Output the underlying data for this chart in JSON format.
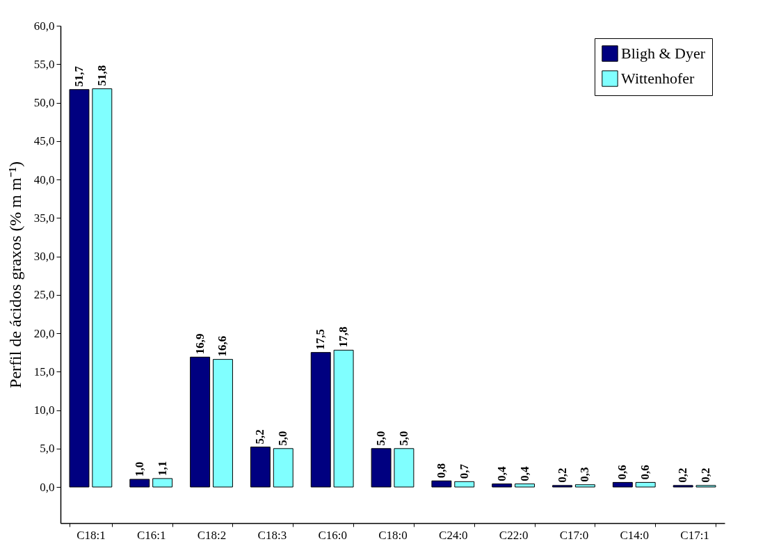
{
  "chart_data": {
    "type": "bar",
    "ylabel": "Perfil de ácidos graxos (% m m⁻¹)",
    "categories": [
      "C18:1",
      "C16:1",
      "C18:2",
      "C18:3",
      "C16:0",
      "C18:0",
      "C24:0",
      "C22:0",
      "C17:0",
      "C14:0",
      "C17:1"
    ],
    "series": [
      {
        "name": "Bligh & Dyer",
        "color": "#000080",
        "values": [
          51.7,
          1.0,
          16.9,
          5.2,
          17.5,
          5.0,
          0.8,
          0.4,
          0.2,
          0.6,
          0.2
        ],
        "value_labels": [
          "51,7",
          "1,0",
          "16,9",
          "5,2",
          "17,5",
          "5,0",
          "0,8",
          "0,4",
          "0,2",
          "0,6",
          "0,2"
        ]
      },
      {
        "name": "Wittenhofer",
        "color": "#80ffff",
        "values": [
          51.8,
          1.1,
          16.6,
          5.0,
          17.8,
          5.0,
          0.7,
          0.4,
          0.3,
          0.6,
          0.2
        ],
        "value_labels": [
          "51,8",
          "1,1",
          "16,6",
          "5,0",
          "17,8",
          "5,0",
          "0,7",
          "0,4",
          "0,3",
          "0,6",
          "0,2"
        ]
      }
    ],
    "ylim": [
      -4.7,
      60
    ],
    "yticks": [
      {
        "value": 0,
        "label": "0,0"
      },
      {
        "value": 5,
        "label": "5,0"
      },
      {
        "value": 10,
        "label": "10,0"
      },
      {
        "value": 15,
        "label": "15,0"
      },
      {
        "value": 20,
        "label": "20,0"
      },
      {
        "value": 25,
        "label": "25,0"
      },
      {
        "value": 30,
        "label": "30,0"
      },
      {
        "value": 35,
        "label": "35,0"
      },
      {
        "value": 40,
        "label": "40,0"
      },
      {
        "value": 45,
        "label": "45,0"
      },
      {
        "value": 50,
        "label": "50,0"
      },
      {
        "value": 55,
        "label": "55,0"
      },
      {
        "value": 60,
        "label": "60,0"
      }
    ],
    "legend": "top right",
    "grid": false
  }
}
